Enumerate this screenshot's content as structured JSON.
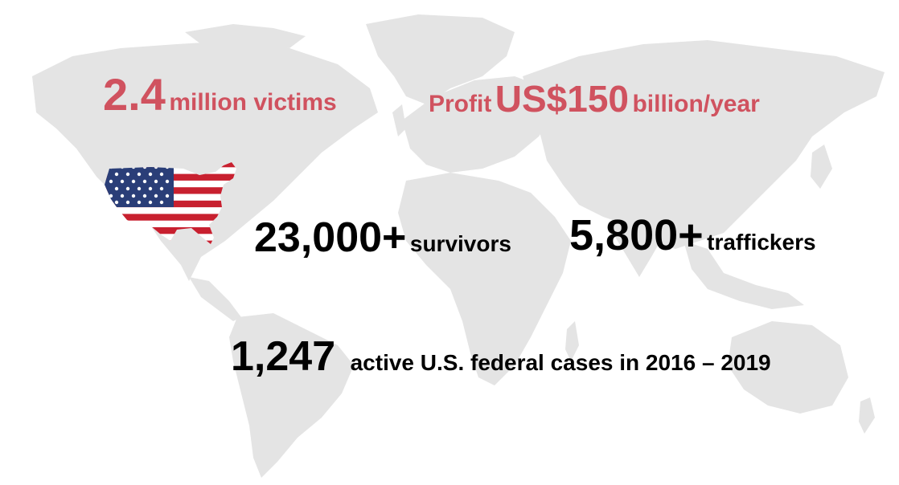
{
  "colors": {
    "accent": "#d0525f",
    "text": "#000000",
    "map": "#e4e4e4"
  },
  "map": {
    "icon": "world-map-icon"
  },
  "flag": {
    "icon": "us-flag-map-icon"
  },
  "stats": {
    "victims": {
      "number": "2.4",
      "label": "million victims"
    },
    "profit": {
      "prefix": "Profit",
      "number": "US$150",
      "label": "billion/year"
    },
    "survivors": {
      "number": "23,000+",
      "label": "survivors"
    },
    "traffickers": {
      "number": "5,800+",
      "label": "traffickers"
    },
    "cases": {
      "number": "1,247",
      "label": "active U.S. federal cases in 2016 – 2019"
    }
  }
}
